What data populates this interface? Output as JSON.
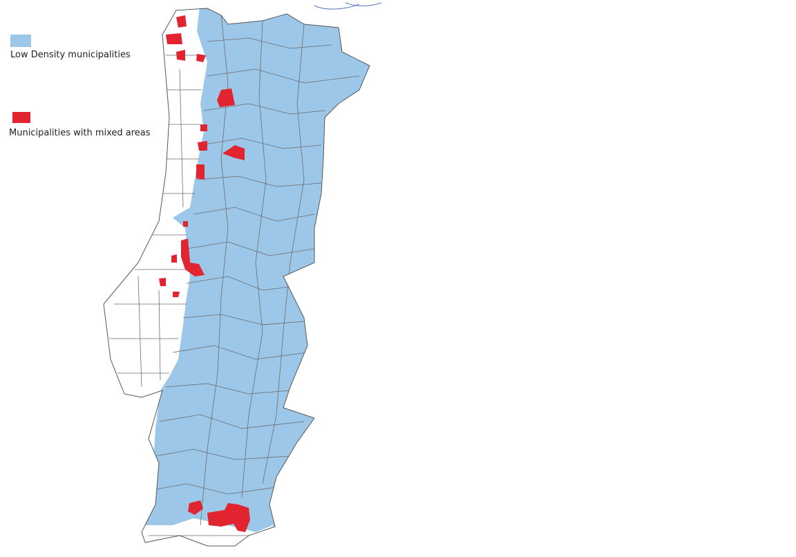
{
  "legend": {
    "items": [
      {
        "label": "Low Density municipalities",
        "color": "#9dc7e8"
      },
      {
        "label": "Municipalities with mixed areas",
        "color": "#e02530"
      }
    ]
  }
}
